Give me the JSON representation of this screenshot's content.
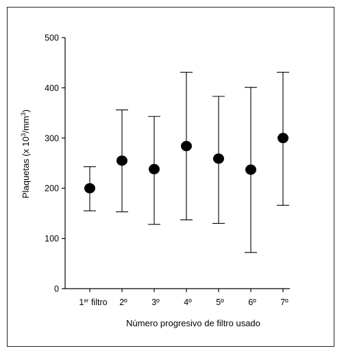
{
  "chart_data": {
    "type": "scatter",
    "subtype": "mean-with-error-bars",
    "categories": [
      "1er filtro",
      "2º",
      "3º",
      "4º",
      "5º",
      "6º",
      "7º"
    ],
    "first_category": {
      "base": "1",
      "superscript": "er",
      "rest": " filtro"
    },
    "values": [
      200,
      255,
      238,
      284,
      259,
      237,
      300
    ],
    "error_low": [
      155,
      153,
      128,
      137,
      130,
      72,
      166
    ],
    "error_high": [
      243,
      356,
      343,
      431,
      383,
      401,
      431
    ],
    "xlabel": "Número progresivo de filtro usado",
    "ylabel": {
      "pre": "Plaquetas (x 10",
      "sup1": "3",
      "mid": "/mm",
      "sup2": "3",
      "post": ")"
    },
    "ylim": [
      0,
      500
    ],
    "yticks": [
      0,
      100,
      200,
      300,
      400,
      500
    ],
    "grid": false,
    "legend": "none",
    "marker_color": "#000000",
    "line_color": "#000000"
  }
}
